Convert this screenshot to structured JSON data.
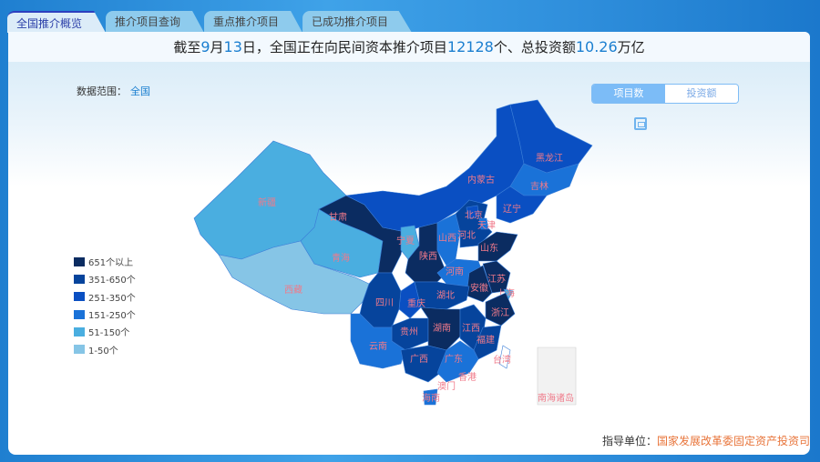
{
  "tabs": [
    "全国推介概览",
    "推介项目查询",
    "重点推介项目",
    "已成功推介项目"
  ],
  "active_tab": 0,
  "headline": {
    "p1": "截至",
    "month": "9",
    "p2": "月",
    "day": "13",
    "p3": "日，全国正在向民间资本推介项目",
    "projects": "12128",
    "p4": "个、总投资额",
    "amount": "10.26",
    "p5": "万亿"
  },
  "scope": {
    "label": "数据范围：",
    "value": "全国"
  },
  "toggle": {
    "options": [
      "项目数",
      "投资额"
    ],
    "selected": "项目数"
  },
  "save_icon": "save-icon",
  "legend": [
    {
      "label": "651个以上",
      "color": "#0b2c61"
    },
    {
      "label": "351-650个",
      "color": "#06449c"
    },
    {
      "label": "251-350个",
      "color": "#0a4fc2"
    },
    {
      "label": "151-250个",
      "color": "#1a72d8"
    },
    {
      "label": "51-150个",
      "color": "#4aaee0"
    },
    {
      "label": "1-50个",
      "color": "#86c5e6"
    }
  ],
  "provinces": [
    {
      "name": "新疆",
      "level": 4
    },
    {
      "name": "西藏",
      "level": 5
    },
    {
      "name": "青海",
      "level": 4
    },
    {
      "name": "甘肃",
      "level": 0
    },
    {
      "name": "内蒙古",
      "level": 2
    },
    {
      "name": "黑龙江",
      "level": 2
    },
    {
      "name": "吉林",
      "level": 3
    },
    {
      "name": "辽宁",
      "level": 2
    },
    {
      "name": "宁夏",
      "level": 4
    },
    {
      "name": "陕西",
      "level": 0
    },
    {
      "name": "山西",
      "level": 3
    },
    {
      "name": "河北",
      "level": 1
    },
    {
      "name": "北京",
      "level": 2
    },
    {
      "name": "天津",
      "level": 3
    },
    {
      "name": "山东",
      "level": 0
    },
    {
      "name": "河南",
      "level": 3
    },
    {
      "name": "江苏",
      "level": 0
    },
    {
      "name": "安徽",
      "level": 0
    },
    {
      "name": "上海",
      "level": 4
    },
    {
      "name": "浙江",
      "level": 0
    },
    {
      "name": "湖北",
      "level": 1
    },
    {
      "name": "重庆",
      "level": 2
    },
    {
      "name": "四川",
      "level": 1
    },
    {
      "name": "贵州",
      "level": 1
    },
    {
      "name": "云南",
      "level": 3
    },
    {
      "name": "湖南",
      "level": 0
    },
    {
      "name": "江西",
      "level": 1
    },
    {
      "name": "福建",
      "level": 1
    },
    {
      "name": "广西",
      "level": 1
    },
    {
      "name": "广东",
      "level": 3
    },
    {
      "name": "台湾",
      "level": null
    },
    {
      "name": "海南",
      "level": 3
    },
    {
      "name": "香港",
      "level": null
    },
    {
      "name": "澳门",
      "level": null
    },
    {
      "name": "南海诸岛",
      "level": null
    }
  ],
  "footer": {
    "label": "指导单位：",
    "org": "国家发展改革委固定资产投资司"
  }
}
